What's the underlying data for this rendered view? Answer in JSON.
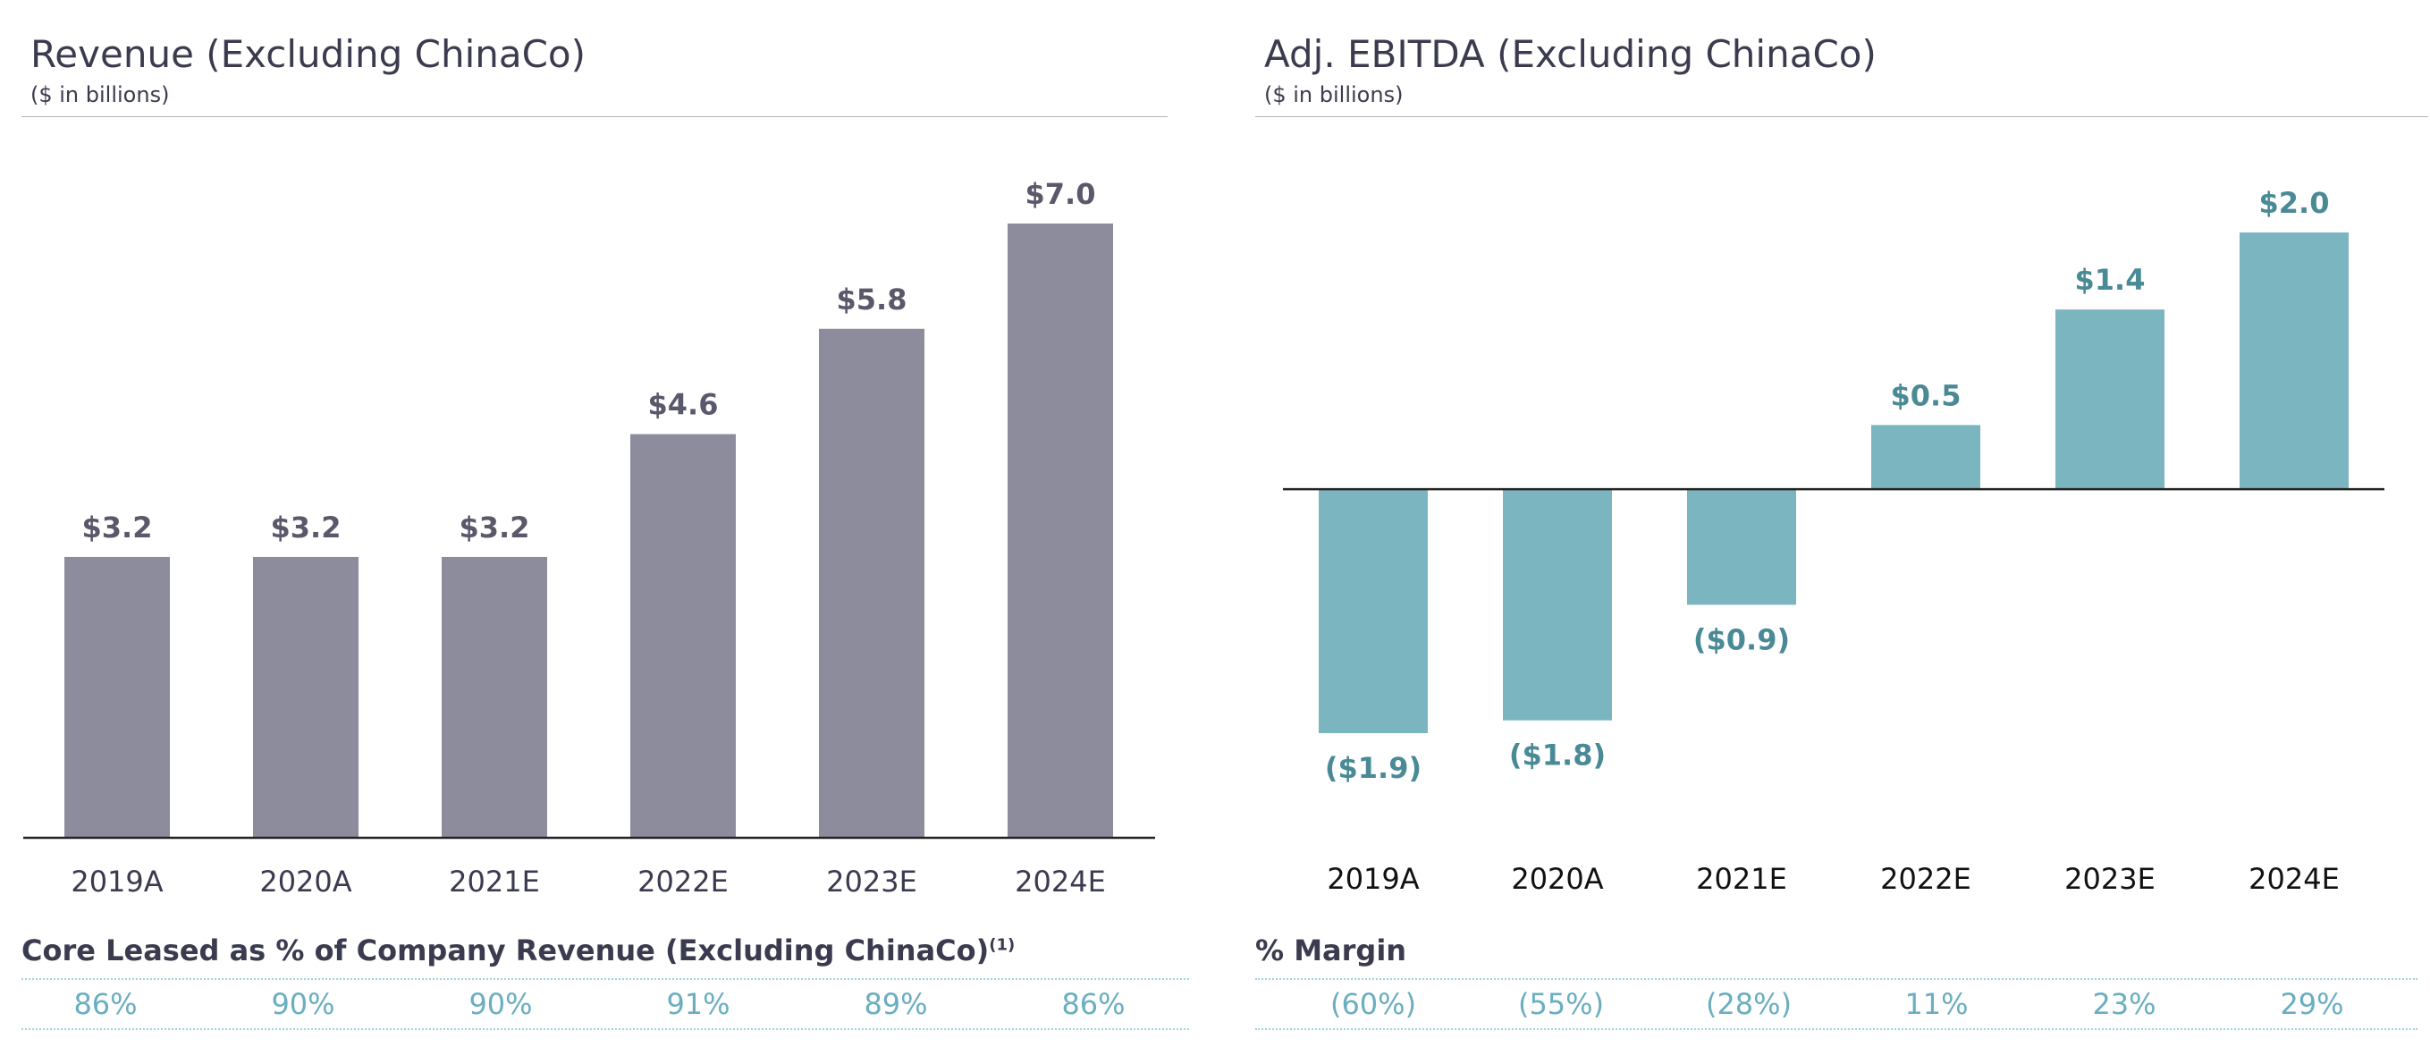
{
  "chart_data": [
    {
      "type": "bar",
      "title": "Revenue (Excluding ChinaCo)",
      "subtitle": "($ in billions)",
      "categories": [
        "2019A",
        "2020A",
        "2021E",
        "2022E",
        "2023E",
        "2024E"
      ],
      "values": [
        3.2,
        3.2,
        3.2,
        4.6,
        5.8,
        7.0
      ],
      "data_labels": [
        "$3.2",
        "$3.2",
        "$3.2",
        "$4.6",
        "$5.8",
        "$7.0"
      ],
      "ylim": [
        0,
        7.0
      ],
      "grid": false,
      "bar_color": "#8d8c9d",
      "label_color": "#5a596b",
      "metric": {
        "label": "Core Leased as % of Company Revenue (Excluding ChinaCo)",
        "footnote": "(1)",
        "values": [
          "86%",
          "90%",
          "90%",
          "91%",
          "89%",
          "86%"
        ]
      }
    },
    {
      "type": "bar",
      "title": "Adj. EBITDA (Excluding ChinaCo)",
      "subtitle": "($ in billions)",
      "categories": [
        "2019A",
        "2020A",
        "2021E",
        "2022E",
        "2023E",
        "2024E"
      ],
      "values": [
        -1.9,
        -1.8,
        -0.9,
        0.5,
        1.4,
        2.0
      ],
      "data_labels": [
        "($1.9)",
        "($1.8)",
        "($0.9)",
        "$0.5",
        "$1.4",
        "$2.0"
      ],
      "ylim": [
        -1.9,
        2.0
      ],
      "grid": false,
      "bar_color": "#7bb5bf",
      "label_color": "#4a8a96",
      "metric": {
        "label": "% Margin",
        "values": [
          "(60%)",
          "(55%)",
          "(28%)",
          "11%",
          "23%",
          "29%"
        ]
      }
    }
  ]
}
